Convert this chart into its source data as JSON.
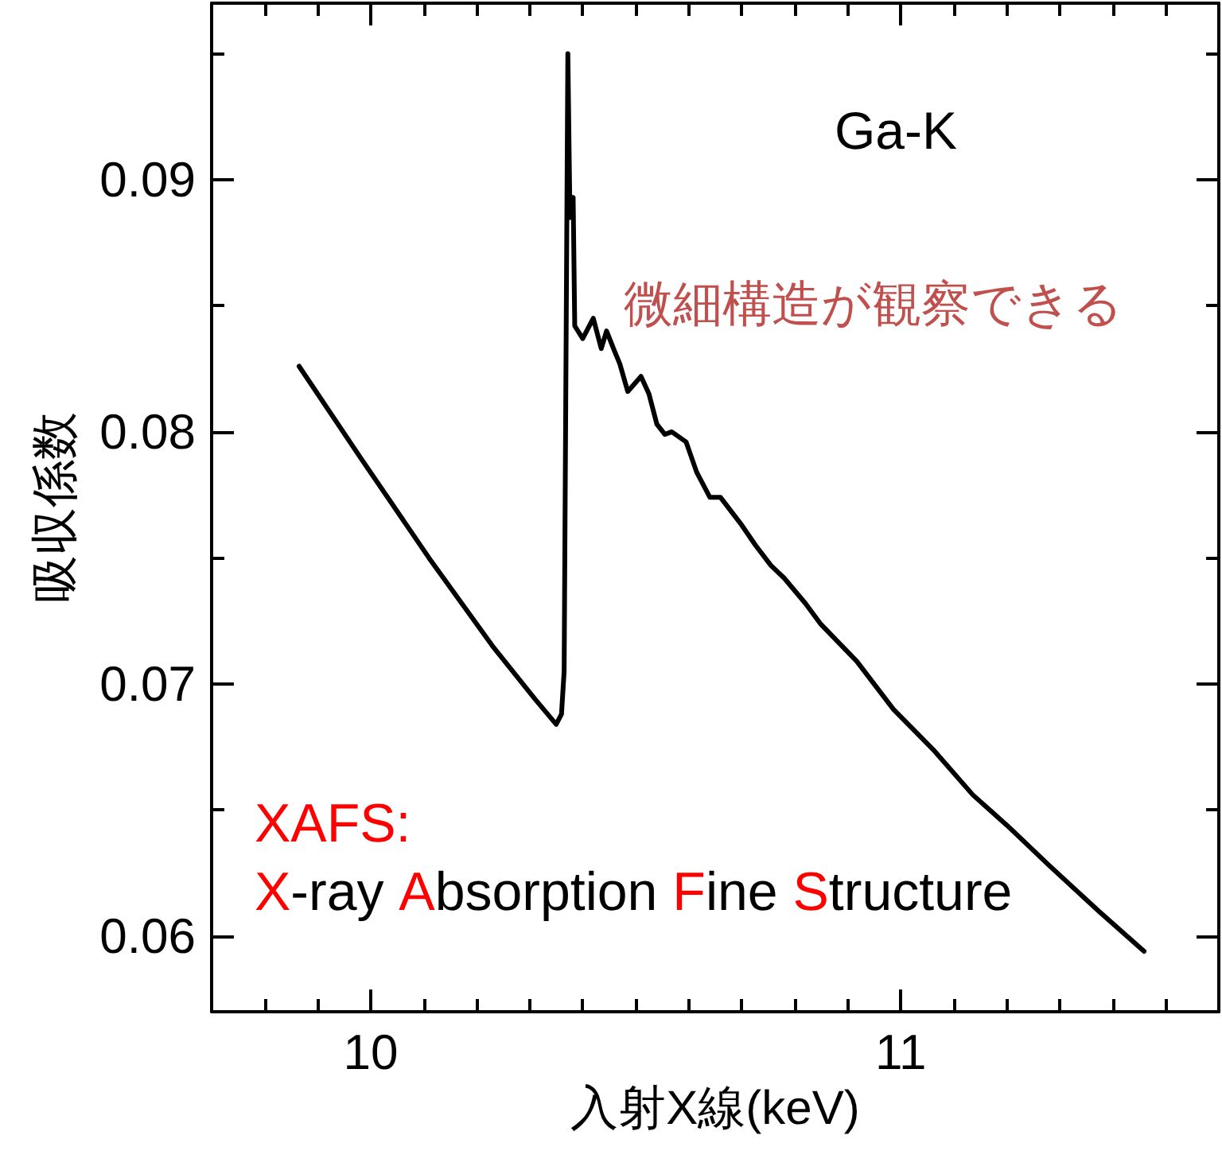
{
  "chart_data": {
    "type": "line",
    "xlabel": "入射X線(keV)",
    "ylabel": "吸収係数",
    "series": [
      {
        "color": "#000000",
        "x": [
          9.865,
          9.98,
          10.11,
          10.23,
          10.31,
          10.35,
          10.36,
          10.365,
          10.372,
          10.376,
          10.382,
          10.385,
          10.4,
          10.42,
          10.435,
          10.445,
          10.46,
          10.47,
          10.485,
          10.51,
          10.525,
          10.54,
          10.555,
          10.568,
          10.595,
          10.615,
          10.64,
          10.66,
          10.7,
          10.726,
          10.755,
          10.78,
          10.82,
          10.848,
          10.917,
          10.986,
          11.061,
          11.136,
          11.2,
          11.28,
          11.373,
          11.459
        ],
        "values": [
          0.0826,
          0.079,
          0.075,
          0.0715,
          0.0694,
          0.0684,
          0.0688,
          0.0705,
          0.095,
          0.0885,
          0.0893,
          0.0842,
          0.0837,
          0.0845,
          0.0833,
          0.084,
          0.0832,
          0.0827,
          0.0816,
          0.0822,
          0.0815,
          0.0803,
          0.0799,
          0.08,
          0.0796,
          0.0784,
          0.0774,
          0.0774,
          0.0763,
          0.0755,
          0.0747,
          0.0742,
          0.0732,
          0.0724,
          0.0709,
          0.069,
          0.0674,
          0.0656,
          0.0644,
          0.0628,
          0.061,
          0.0594
        ]
      }
    ],
    "xlim": [
      9.7,
      11.6
    ],
    "ylim": [
      0.057,
      0.097
    ],
    "xticks": [
      {
        "value": 9.8,
        "label": null
      },
      {
        "value": 9.9,
        "label": null
      },
      10,
      {
        "value": 10.1,
        "label": null
      },
      {
        "value": 10.2,
        "label": null
      },
      {
        "value": 10.3,
        "label": null
      },
      {
        "value": 10.4,
        "label": null
      },
      {
        "value": 10.5,
        "label": null
      },
      {
        "value": 10.6,
        "label": null
      },
      {
        "value": 10.7,
        "label": null
      },
      {
        "value": 10.8,
        "label": null
      },
      {
        "value": 10.9,
        "label": null
      },
      11,
      {
        "value": 11.1,
        "label": null
      },
      {
        "value": 11.2,
        "label": null
      },
      {
        "value": 11.3,
        "label": null
      },
      {
        "value": 11.4,
        "label": null
      },
      {
        "value": 11.5,
        "label": null
      }
    ],
    "yticks": [
      0.06,
      {
        "value": 0.065,
        "label": null
      },
      0.07,
      {
        "value": 0.075,
        "label": null
      },
      0.08,
      {
        "value": 0.085,
        "label": null
      },
      0.09,
      {
        "value": 0.095,
        "label": null
      }
    ],
    "annotations": [
      "Ga-K",
      "微細構造が観察できる",
      "XAFS:",
      "X-ray Absorption Fine Structure"
    ],
    "marker": "none",
    "line_style": "solid"
  }
}
